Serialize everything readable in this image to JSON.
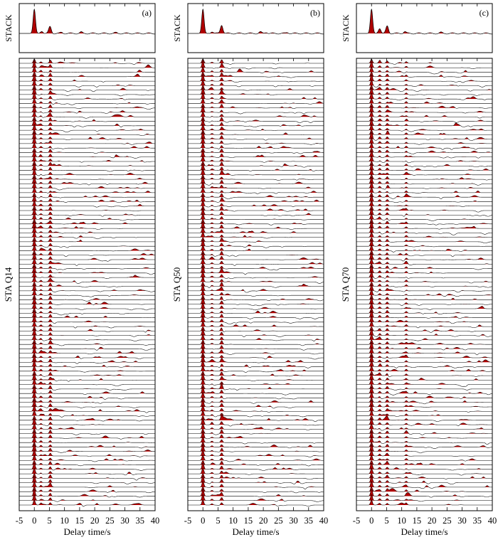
{
  "figure": {
    "xlabel": "Delay time/s",
    "stack_label": "STACK",
    "xlim": [
      -5,
      40
    ],
    "xticks": [
      -5,
      0,
      5,
      10,
      15,
      20,
      25,
      30,
      35,
      40
    ],
    "trace_count": 100,
    "positive_fill_color": "#b00000",
    "trace_line_color": "#000000"
  },
  "chart_data": [
    {
      "type": "line",
      "panel_label": "(a)",
      "station": "STA Q14",
      "xlabel": "Delay time/s",
      "xlim": [
        -5,
        40
      ],
      "stack": {
        "name": "STACK",
        "peaks": [
          {
            "t": 0.0,
            "amp": 1.0
          },
          {
            "t": 2.5,
            "amp": 0.1
          },
          {
            "t": 5.2,
            "amp": 0.28
          },
          {
            "t": 9.0,
            "amp": 0.04
          },
          {
            "t": 15.5,
            "amp": 0.05
          },
          {
            "t": 27.0,
            "amp": 0.03
          }
        ]
      },
      "trace_phases": [
        {
          "t": 0.0,
          "amp": 0.9
        },
        {
          "t": 5.3,
          "amp": 0.45
        },
        {
          "t": 2.2,
          "amp": 0.25
        }
      ]
    },
    {
      "type": "line",
      "panel_label": "(b)",
      "station": "STA Q50",
      "xlabel": "Delay time/s",
      "xlim": [
        -5,
        40
      ],
      "stack": {
        "name": "STACK",
        "peaks": [
          {
            "t": 0.0,
            "amp": 1.0
          },
          {
            "t": 3.0,
            "amp": 0.08
          },
          {
            "t": 6.2,
            "amp": 0.35
          },
          {
            "t": 19.0,
            "amp": 0.06
          },
          {
            "t": 21.0,
            "amp": 0.05
          },
          {
            "t": 28.0,
            "amp": 0.04
          }
        ]
      },
      "trace_phases": [
        {
          "t": 0.0,
          "amp": 0.9
        },
        {
          "t": 6.2,
          "amp": 0.5
        },
        {
          "t": 3.0,
          "amp": 0.2
        }
      ]
    },
    {
      "type": "line",
      "panel_label": "(c)",
      "station": "STA Q70",
      "xlabel": "Delay time/s",
      "xlim": [
        -5,
        40
      ],
      "stack": {
        "name": "STACK",
        "peaks": [
          {
            "t": 0.0,
            "amp": 1.0
          },
          {
            "t": 2.7,
            "amp": 0.22
          },
          {
            "t": 5.2,
            "amp": 0.3
          },
          {
            "t": 11.0,
            "amp": 0.08
          },
          {
            "t": 23.0,
            "amp": 0.04
          }
        ]
      },
      "trace_phases": [
        {
          "t": 0.0,
          "amp": 0.9
        },
        {
          "t": 2.7,
          "amp": 0.3
        },
        {
          "t": 5.2,
          "amp": 0.35
        },
        {
          "t": 11.5,
          "amp": 0.25
        }
      ]
    }
  ]
}
